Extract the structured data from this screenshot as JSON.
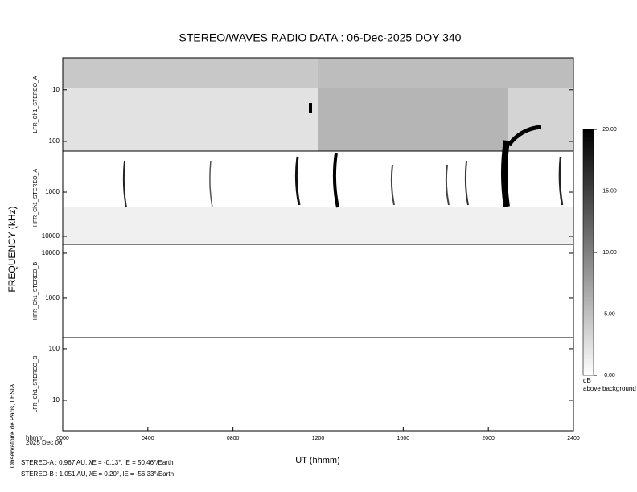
{
  "chart_data": {
    "type": "spectrogram",
    "title": "STEREO/WAVES  RADIO  DATA : 06-Dec-2025  DOY 340",
    "ylabel": "FREQUENCY (kHz)",
    "xlabel": "UT (hhmm)",
    "x_unit": "hhmm",
    "date": "2025 Dec 06",
    "credit": "Observatoire de Paris, LESIA",
    "xlim": [
      0,
      2400
    ],
    "xticks": [
      {
        "value": 0,
        "label": "0000"
      },
      {
        "value": 400,
        "label": "0400"
      },
      {
        "value": 800,
        "label": "0800"
      },
      {
        "value": 1200,
        "label": "1200"
      },
      {
        "value": 1600,
        "label": "1600"
      },
      {
        "value": 2000,
        "label": "2000"
      },
      {
        "value": 2400,
        "label": "2400"
      }
    ],
    "log_y": true,
    "panels": [
      {
        "label": "LFR_Ch1_STEREO_A",
        "ylim": [
          2.4,
          154
        ],
        "yticks": [
          10,
          100
        ]
      },
      {
        "label": "HFR_Ch1_STEREO_A",
        "ylim": [
          118,
          15200
        ],
        "yticks": [
          1000,
          10000
        ]
      },
      {
        "label": "HFR_Ch1_STEREO_B",
        "ylim": [
          15700,
          133
        ],
        "yticks": [
          10000,
          1000
        ]
      },
      {
        "label": "LFR_Ch1_STEREO_B",
        "ylim": [
          165,
          2.55
        ],
        "yticks": [
          100,
          10
        ]
      }
    ],
    "colorbar": {
      "unit": "dB",
      "label": "above background",
      "lim": [
        0,
        20
      ],
      "ticks": [
        {
          "value": 0,
          "label": "0.00"
        },
        {
          "value": 5,
          "label": "5.00"
        },
        {
          "value": 10,
          "label": "10.00"
        },
        {
          "value": 15,
          "label": "15.00"
        },
        {
          "value": 20,
          "label": "20.00"
        }
      ]
    },
    "ephemeris": [
      "STEREO-A : 0.967 AU, λE = -0.13°, lE = 50.46°/Earth",
      "STEREO-B : 1.051 AU, λE = 0.20°, lE = -56.33°/Earth"
    ]
  }
}
